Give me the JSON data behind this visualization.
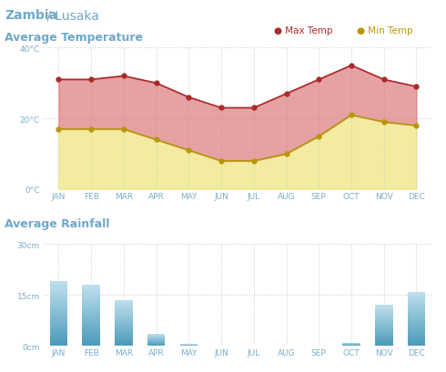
{
  "title_bold": "Zambia",
  "title_light": " / Lusaka",
  "temp_title": "Average Temperature",
  "rain_title": "Average Rainfall",
  "months": [
    "JAN",
    "FEB",
    "MAR",
    "APR",
    "MAY",
    "JUN",
    "JUL",
    "AUG",
    "SEP",
    "OCT",
    "NOV",
    "DEC"
  ],
  "max_temp": [
    31,
    31,
    32,
    30,
    26,
    23,
    23,
    27,
    31,
    35,
    31,
    29
  ],
  "min_temp": [
    17,
    17,
    17,
    14,
    11,
    8,
    8,
    10,
    15,
    21,
    19,
    18
  ],
  "rainfall": [
    19,
    18,
    13.5,
    3.5,
    0.5,
    0.2,
    0.2,
    0.2,
    0.2,
    1.0,
    12,
    16
  ],
  "temp_ylim": [
    0,
    40
  ],
  "rain_ylim": [
    0,
    30
  ],
  "temp_yticks": [
    0,
    20,
    40
  ],
  "temp_ytick_labels": [
    "0°C",
    "20°C",
    "40°C"
  ],
  "rain_yticks": [
    0,
    15,
    30
  ],
  "rain_ytick_labels": [
    "0cm",
    "15cm",
    "30cm"
  ],
  "background_color": "#ffffff",
  "title_color": "#6fa8c8",
  "max_temp_color": "#aa2a2a",
  "min_temp_color": "#b8960a",
  "fill_between_color": "#d97070",
  "fill_below_color": "#f0e890",
  "bar_color_top": "#4a9ab8",
  "bar_color_bottom": "#c0e0ee",
  "grid_color": "#cccccc",
  "tick_color": "#7aafc8"
}
